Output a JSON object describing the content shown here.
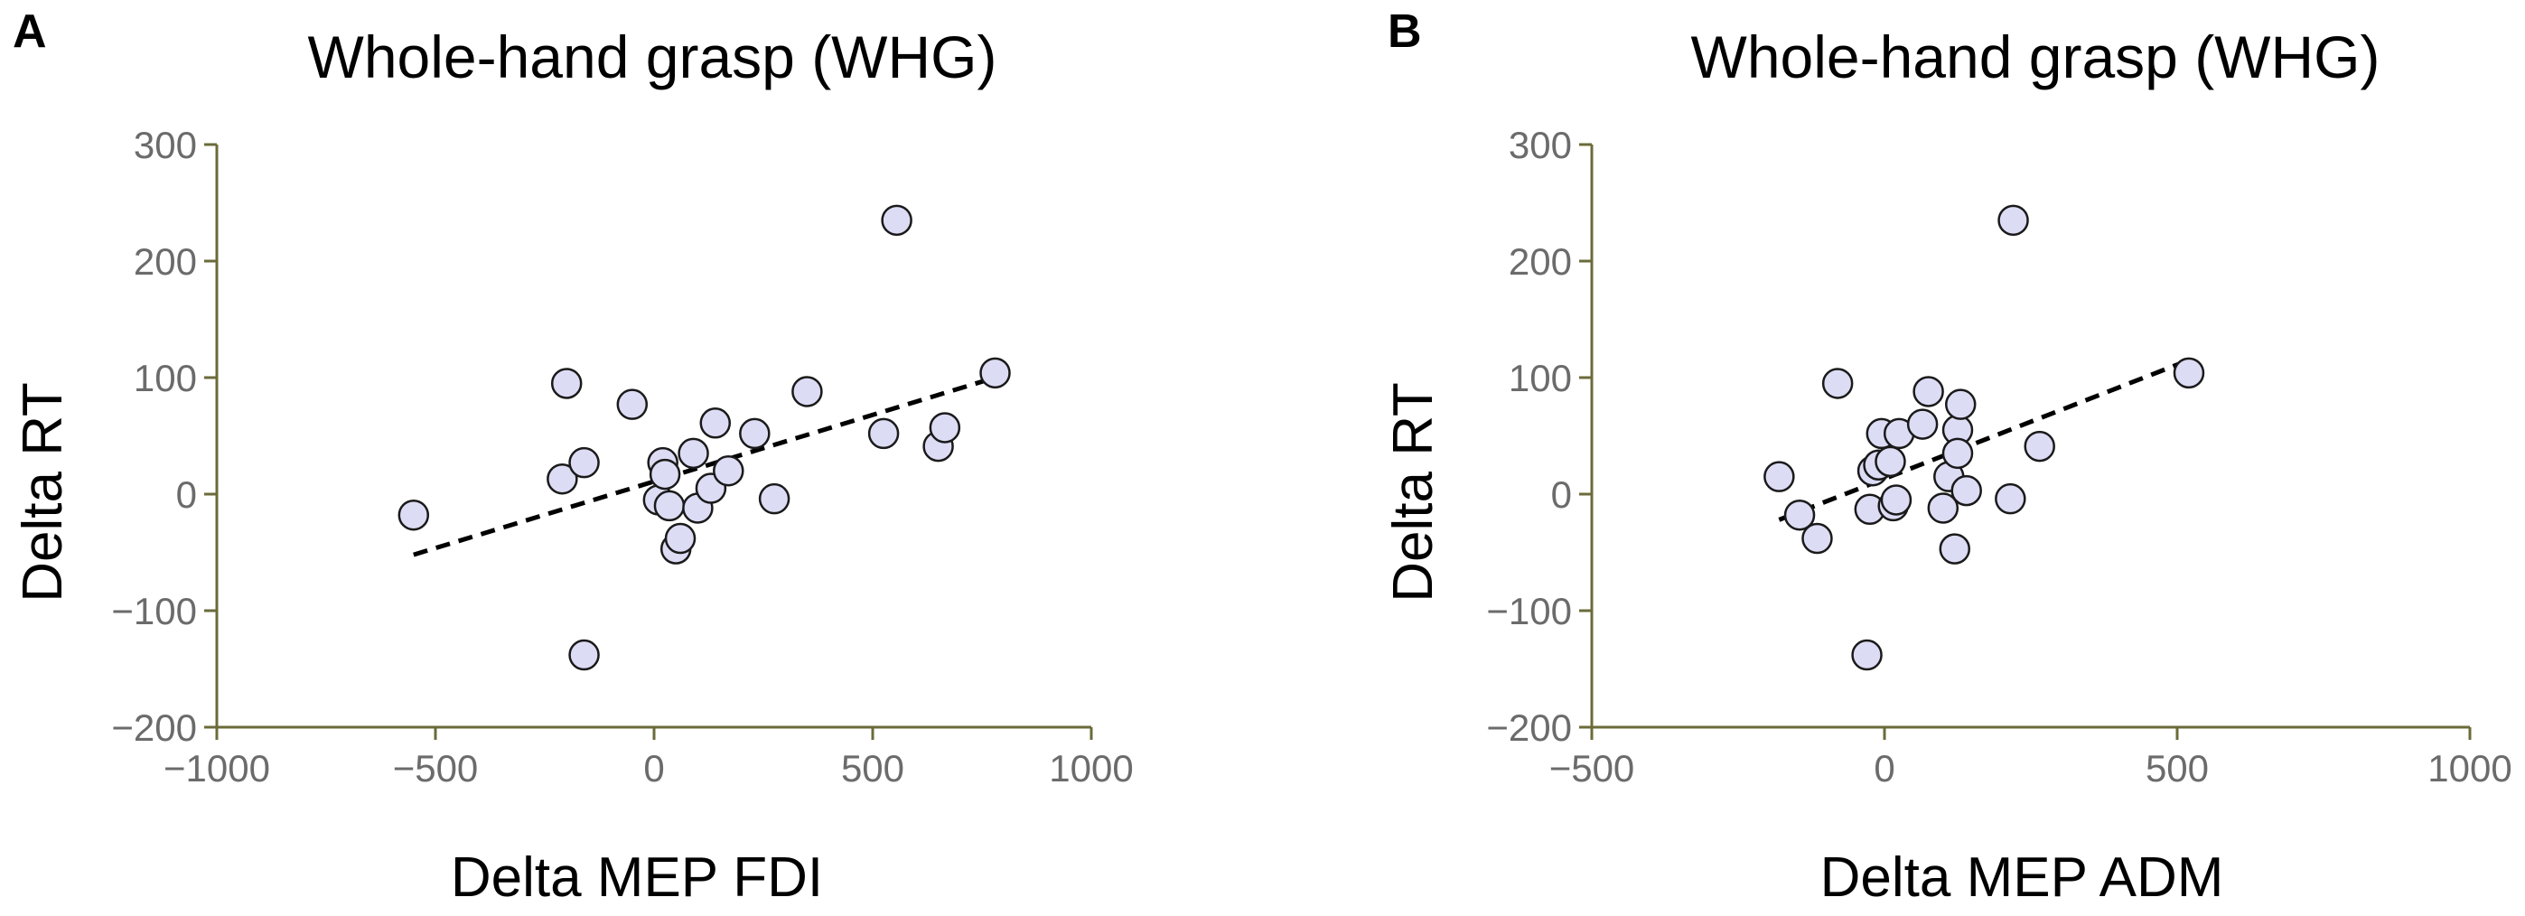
{
  "chart_data": [
    {
      "type": "scatter",
      "panel": "A",
      "title": "Whole-hand grasp (WHG)",
      "xlabel": "Delta MEP FDI",
      "ylabel": "Delta RT",
      "xlim": [
        -1000,
        1000
      ],
      "ylim": [
        -200,
        300
      ],
      "xticks": [
        -1000,
        -500,
        0,
        500,
        1000
      ],
      "yticks": [
        -200,
        -100,
        0,
        100,
        200,
        300
      ],
      "points": [
        {
          "x": -550,
          "y": -18
        },
        {
          "x": -200,
          "y": 95
        },
        {
          "x": -210,
          "y": 13
        },
        {
          "x": -160,
          "y": 27
        },
        {
          "x": -160,
          "y": -138
        },
        {
          "x": -50,
          "y": 77
        },
        {
          "x": 10,
          "y": -5
        },
        {
          "x": 20,
          "y": 27
        },
        {
          "x": 25,
          "y": 17
        },
        {
          "x": 35,
          "y": -10
        },
        {
          "x": 50,
          "y": -47
        },
        {
          "x": 60,
          "y": -38
        },
        {
          "x": 90,
          "y": 35
        },
        {
          "x": 100,
          "y": -12
        },
        {
          "x": 130,
          "y": 5
        },
        {
          "x": 140,
          "y": 61
        },
        {
          "x": 170,
          "y": 20
        },
        {
          "x": 230,
          "y": 52
        },
        {
          "x": 275,
          "y": -4
        },
        {
          "x": 350,
          "y": 88
        },
        {
          "x": 525,
          "y": 52
        },
        {
          "x": 555,
          "y": 235
        },
        {
          "x": 650,
          "y": 41
        },
        {
          "x": 665,
          "y": 57
        },
        {
          "x": 780,
          "y": 104
        }
      ],
      "trendline": {
        "x": [
          -550,
          780
        ],
        "y": [
          -52,
          100
        ]
      }
    },
    {
      "type": "scatter",
      "panel": "B",
      "title": "Whole-hand grasp (WHG)",
      "xlabel": "Delta MEP ADM",
      "ylabel": "Delta RT",
      "xlim": [
        -500,
        1000
      ],
      "ylim": [
        -200,
        300
      ],
      "xticks": [
        -500,
        0,
        500,
        1000
      ],
      "yticks": [
        -200,
        -100,
        0,
        100,
        200,
        300
      ],
      "points": [
        {
          "x": -180,
          "y": 15
        },
        {
          "x": -145,
          "y": -18
        },
        {
          "x": -115,
          "y": -38
        },
        {
          "x": -80,
          "y": 95
        },
        {
          "x": -30,
          "y": -138
        },
        {
          "x": -25,
          "y": -13
        },
        {
          "x": -20,
          "y": 20
        },
        {
          "x": -10,
          "y": 25
        },
        {
          "x": -5,
          "y": 52
        },
        {
          "x": 10,
          "y": 28
        },
        {
          "x": 15,
          "y": -10
        },
        {
          "x": 20,
          "y": -5
        },
        {
          "x": 25,
          "y": 52
        },
        {
          "x": 65,
          "y": 60
        },
        {
          "x": 75,
          "y": 88
        },
        {
          "x": 100,
          "y": -12
        },
        {
          "x": 110,
          "y": 15
        },
        {
          "x": 120,
          "y": -47
        },
        {
          "x": 125,
          "y": 55
        },
        {
          "x": 125,
          "y": 35
        },
        {
          "x": 130,
          "y": 77
        },
        {
          "x": 140,
          "y": 3
        },
        {
          "x": 215,
          "y": -4
        },
        {
          "x": 220,
          "y": 235
        },
        {
          "x": 265,
          "y": 41
        },
        {
          "x": 520,
          "y": 104
        }
      ],
      "trendline": {
        "x": [
          -180,
          520
        ],
        "y": [
          -22,
          115
        ]
      }
    }
  ]
}
